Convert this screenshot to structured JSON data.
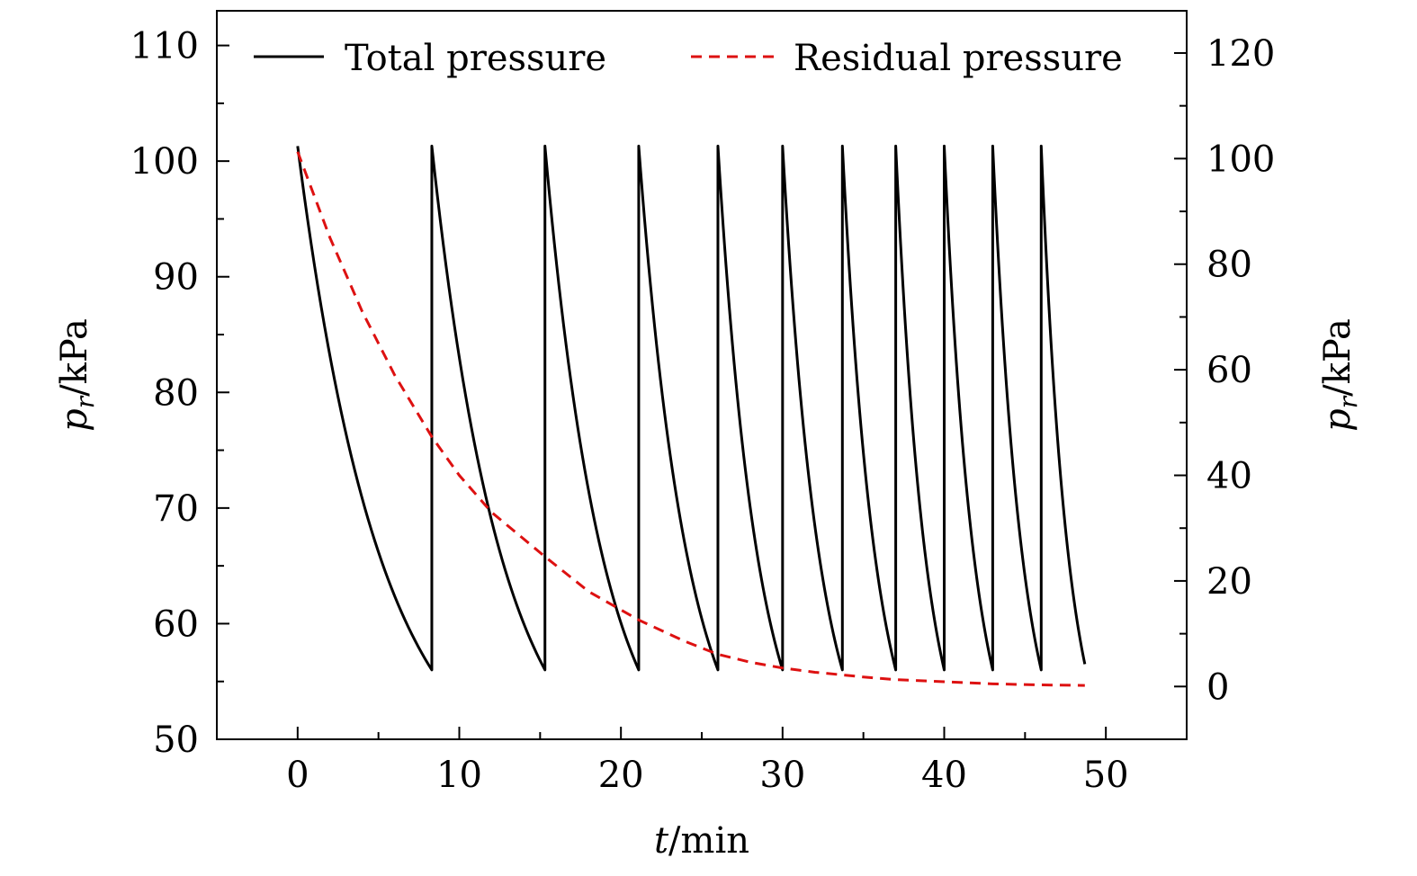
{
  "chart_data": {
    "type": "line",
    "title": "",
    "xlabel": "t/min",
    "ylabel_left": "p_r/kPa",
    "ylabel_right": "p_r/kPa",
    "xlim": [
      -5,
      55
    ],
    "ylim_left": [
      50,
      113
    ],
    "ylim_right": [
      -10,
      128
    ],
    "x_ticks": [
      0,
      10,
      20,
      30,
      40,
      50
    ],
    "y_left_ticks": [
      50,
      60,
      70,
      80,
      90,
      100,
      110
    ],
    "y_right_ticks": [
      0,
      20,
      40,
      60,
      80,
      100,
      120
    ],
    "grid": false,
    "legend_position": "top",
    "series": [
      {
        "name": "Total pressure",
        "axis": "left",
        "color": "#000000",
        "style": "solid",
        "peak": 101.3,
        "trough": 56.0,
        "cycle_starts": [
          0,
          8.3,
          15.3,
          21.1,
          26.0,
          30.0,
          33.7,
          37.0,
          40.0,
          43.0,
          46.0
        ],
        "end_x": 48.7,
        "end_y": 56.5
      },
      {
        "name": "Residual pressure",
        "axis": "right",
        "color": "#dd1111",
        "style": "dashed",
        "x": [
          0,
          2,
          4,
          6,
          8.3,
          10,
          12,
          15.3,
          18,
          21.1,
          24,
          26.0,
          28,
          30.0,
          32,
          33.7,
          35,
          37.0,
          40.0,
          43.0,
          46.0,
          48.7
        ],
        "values": [
          101.3,
          85,
          71,
          59,
          47.3,
          40,
          33,
          24.6,
          18,
          12.6,
          8.5,
          6.1,
          4.6,
          3.5,
          2.7,
          2.2,
          1.8,
          1.3,
          0.9,
          0.5,
          0.3,
          0.2
        ]
      }
    ]
  }
}
